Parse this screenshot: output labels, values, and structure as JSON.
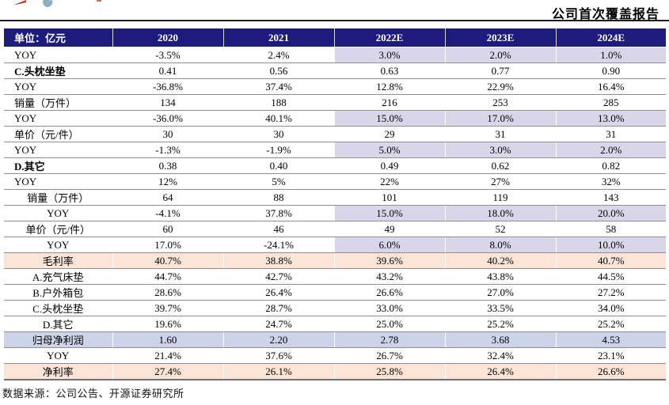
{
  "page": {
    "report_type_label": "公司首次覆盖报告",
    "source_note": "数据来源：公司公告、开源证券研究所"
  },
  "colors": {
    "header_bg": "#1d1b7b",
    "estimate_cell_bg": "#dad6e9",
    "highlight_peach_bg": "#fce4d6",
    "highlight_blue_bg": "#cdd4e9",
    "logo_red": "#c0392b",
    "logo_blue": "#8fadbf"
  },
  "table": {
    "unit_header": "单位：亿元",
    "year_columns": [
      "2020",
      "2021",
      "2022E",
      "2023E",
      "2024E"
    ],
    "rows": [
      {
        "label": "YOY",
        "values": [
          "-3.5%",
          "2.4%",
          "3.0%",
          "2.0%",
          "1.0%"
        ]
      },
      {
        "label": "C.头枕坐垫",
        "values": [
          "0.41",
          "0.56",
          "0.63",
          "0.77",
          "0.90"
        ]
      },
      {
        "label": "YOY",
        "values": [
          "-36.8%",
          "37.4%",
          "12.8%",
          "22.9%",
          "16.4%"
        ]
      },
      {
        "label": "销量（万件）",
        "values": [
          "134",
          "188",
          "216",
          "253",
          "285"
        ]
      },
      {
        "label": "YOY",
        "values": [
          "-36.0%",
          "40.1%",
          "15.0%",
          "17.0%",
          "13.0%"
        ]
      },
      {
        "label": "单价（元/件）",
        "values": [
          "30",
          "30",
          "29",
          "31",
          "31"
        ]
      },
      {
        "label": "YOY",
        "values": [
          "-1.3%",
          "-1.9%",
          "5.0%",
          "3.0%",
          "2.0%"
        ]
      },
      {
        "label": "D.其它",
        "values": [
          "0.38",
          "0.40",
          "0.49",
          "0.62",
          "0.82"
        ]
      },
      {
        "label": "YOY",
        "values": [
          "12%",
          "5%",
          "22%",
          "27%",
          "32%"
        ]
      },
      {
        "label": "销量（万件）",
        "values": [
          "64",
          "88",
          "101",
          "119",
          "143"
        ]
      },
      {
        "label": "YOY",
        "values": [
          "-4.1%",
          "37.8%",
          "15.0%",
          "18.0%",
          "20.0%"
        ]
      },
      {
        "label": "单价（元/件）",
        "values": [
          "60",
          "46",
          "49",
          "52",
          "58"
        ]
      },
      {
        "label": "YOY",
        "values": [
          "17.0%",
          "-24.1%",
          "6.0%",
          "8.0%",
          "10.0%"
        ]
      },
      {
        "label": "毛利率",
        "values": [
          "40.7%",
          "38.8%",
          "39.6%",
          "40.2%",
          "40.7%"
        ]
      },
      {
        "label": "A.充气床垫",
        "values": [
          "44.7%",
          "42.7%",
          "43.2%",
          "43.8%",
          "44.5%"
        ]
      },
      {
        "label": "B.户外箱包",
        "values": [
          "28.6%",
          "26.4%",
          "26.6%",
          "27.0%",
          "27.2%"
        ]
      },
      {
        "label": "C.头枕坐垫",
        "values": [
          "39.7%",
          "28.7%",
          "33.0%",
          "33.5%",
          "34.0%"
        ]
      },
      {
        "label": "D.其它",
        "values": [
          "19.6%",
          "24.7%",
          "25.0%",
          "25.2%",
          "25.2%"
        ]
      },
      {
        "label": "归母净利润",
        "values": [
          "1.60",
          "2.20",
          "2.78",
          "3.68",
          "4.53"
        ]
      },
      {
        "label": "YOY",
        "values": [
          "21.4%",
          "37.6%",
          "26.7%",
          "32.4%",
          "23.1%"
        ]
      },
      {
        "label": "净利率",
        "values": [
          "27.4%",
          "26.1%",
          "25.8%",
          "26.4%",
          "26.6%"
        ]
      }
    ]
  }
}
